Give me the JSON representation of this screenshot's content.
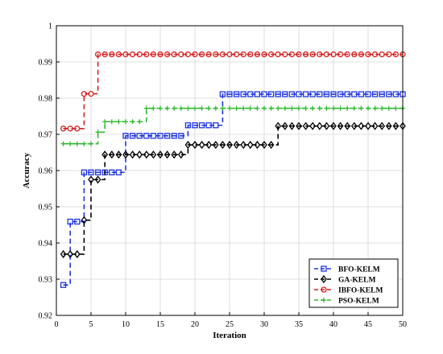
{
  "chart_data": {
    "type": "line",
    "xlabel": "Iteration",
    "ylabel": "Accuracy",
    "xlim": [
      0,
      50
    ],
    "ylim": [
      0.92,
      1.0
    ],
    "xticks": [
      "0",
      "5",
      "10",
      "15",
      "20",
      "25",
      "30",
      "35",
      "40",
      "45",
      "50"
    ],
    "yticks": [
      "0.92",
      "0.93",
      "0.94",
      "0.95",
      "0.96",
      "0.97",
      "0.98",
      "0.99",
      "1"
    ],
    "x": [
      1,
      2,
      3,
      4,
      5,
      6,
      7,
      8,
      9,
      10,
      11,
      12,
      13,
      14,
      15,
      16,
      17,
      18,
      19,
      20,
      21,
      22,
      23,
      24,
      25,
      26,
      27,
      28,
      29,
      30,
      31,
      32,
      33,
      34,
      35,
      36,
      37,
      38,
      39,
      40,
      41,
      42,
      43,
      44,
      45,
      46,
      47,
      48,
      49,
      50
    ],
    "grid": true,
    "legend_position": "bottom-right",
    "series": [
      {
        "name": "BFO-KELM",
        "color": "#1f35e0",
        "marker": "square",
        "values": [
          0.9284,
          0.9459,
          0.9459,
          0.9595,
          0.9595,
          0.9595,
          0.9595,
          0.9595,
          0.9595,
          0.9696,
          0.9696,
          0.9696,
          0.9696,
          0.9696,
          0.9696,
          0.9696,
          0.9696,
          0.9696,
          0.9725,
          0.9725,
          0.9725,
          0.9725,
          0.9725,
          0.9811,
          0.9811,
          0.9811,
          0.9811,
          0.9811,
          0.9811,
          0.9811,
          0.9811,
          0.9811,
          0.9811,
          0.9811,
          0.9811,
          0.9811,
          0.9811,
          0.9811,
          0.9811,
          0.9811,
          0.9811,
          0.9811,
          0.9811,
          0.9811,
          0.9811,
          0.9811,
          0.9811,
          0.9811,
          0.9811,
          0.9811
        ]
      },
      {
        "name": "GA-KELM",
        "color": "#000000",
        "marker": "diamond",
        "values": [
          0.9369,
          0.9369,
          0.9369,
          0.9463,
          0.9575,
          0.9575,
          0.9644,
          0.9644,
          0.9644,
          0.9644,
          0.9644,
          0.9644,
          0.9644,
          0.9644,
          0.9644,
          0.9644,
          0.9644,
          0.9644,
          0.9671,
          0.9671,
          0.9671,
          0.9671,
          0.9671,
          0.9671,
          0.9671,
          0.9671,
          0.9671,
          0.9671,
          0.9671,
          0.9671,
          0.9671,
          0.9723,
          0.9723,
          0.9723,
          0.9723,
          0.9723,
          0.9723,
          0.9723,
          0.9723,
          0.9723,
          0.9723,
          0.9723,
          0.9723,
          0.9723,
          0.9723,
          0.9723,
          0.9723,
          0.9723,
          0.9723,
          0.9723
        ]
      },
      {
        "name": "IBFO-KELM",
        "color": "#d42020",
        "marker": "circle",
        "values": [
          0.9716,
          0.9716,
          0.9716,
          0.9812,
          0.9812,
          0.9921,
          0.9921,
          0.9921,
          0.9921,
          0.9921,
          0.9921,
          0.9921,
          0.9921,
          0.9921,
          0.9921,
          0.9921,
          0.9921,
          0.9921,
          0.9921,
          0.9921,
          0.9921,
          0.9921,
          0.9921,
          0.9921,
          0.9921,
          0.9921,
          0.9921,
          0.9921,
          0.9921,
          0.9921,
          0.9921,
          0.9921,
          0.9921,
          0.9921,
          0.9921,
          0.9921,
          0.9921,
          0.9921,
          0.9921,
          0.9921,
          0.9921,
          0.9921,
          0.9921,
          0.9921,
          0.9921,
          0.9921,
          0.9921,
          0.9921,
          0.9921,
          0.9921
        ]
      },
      {
        "name": "PSO-KELM",
        "color": "#2db82d",
        "marker": "plus",
        "values": [
          0.9674,
          0.9674,
          0.9674,
          0.9674,
          0.9674,
          0.9706,
          0.9735,
          0.9735,
          0.9735,
          0.9735,
          0.9735,
          0.9735,
          0.9772,
          0.9772,
          0.9772,
          0.9772,
          0.9772,
          0.9772,
          0.9772,
          0.9772,
          0.9772,
          0.9772,
          0.9772,
          0.9772,
          0.9772,
          0.9772,
          0.9772,
          0.9772,
          0.9772,
          0.9772,
          0.9772,
          0.9772,
          0.9772,
          0.9772,
          0.9772,
          0.9772,
          0.9772,
          0.9772,
          0.9772,
          0.9772,
          0.9772,
          0.9772,
          0.9772,
          0.9772,
          0.9772,
          0.9772,
          0.9772,
          0.9772,
          0.9772,
          0.9772
        ]
      }
    ]
  }
}
